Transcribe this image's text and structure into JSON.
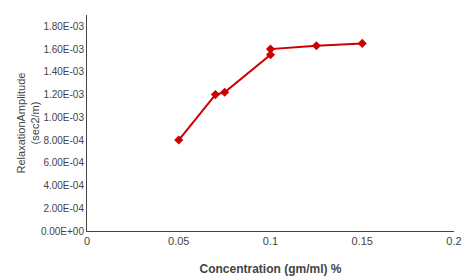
{
  "chart_data": {
    "type": "line",
    "x": [
      0.05,
      0.07,
      0.075,
      0.1,
      0.1,
      0.125,
      0.15
    ],
    "values": [
      0.0008,
      0.0012,
      0.00122,
      0.00155,
      0.0016,
      0.00163,
      0.00165
    ],
    "color": "#cc0000",
    "marker": "diamond",
    "xlabel": "Concentration (gm/ml) %",
    "ylabel": "RelaxationAmplitude\n(sec2/m)",
    "xlim": [
      0,
      0.2
    ],
    "ylim": [
      0,
      0.0019
    ],
    "xticks": [
      0,
      0.05,
      0.1,
      0.15,
      0.2
    ],
    "yticks": [
      {
        "value": 0.0,
        "label": "0.00E+00"
      },
      {
        "value": 0.0002,
        "label": "2.00E-04"
      },
      {
        "value": 0.0004,
        "label": "4.00E-04"
      },
      {
        "value": 0.0006,
        "label": "6.00E-04"
      },
      {
        "value": 0.0008,
        "label": "8.00E-04"
      },
      {
        "value": 0.001,
        "label": "1.00E-03"
      },
      {
        "value": 0.0012,
        "label": "1.20E-03"
      },
      {
        "value": 0.0014,
        "label": "1.40E-03"
      },
      {
        "value": 0.0016,
        "label": "1.60E-03"
      },
      {
        "value": 0.0018,
        "label": "1.80E-03"
      }
    ],
    "grid": false
  }
}
